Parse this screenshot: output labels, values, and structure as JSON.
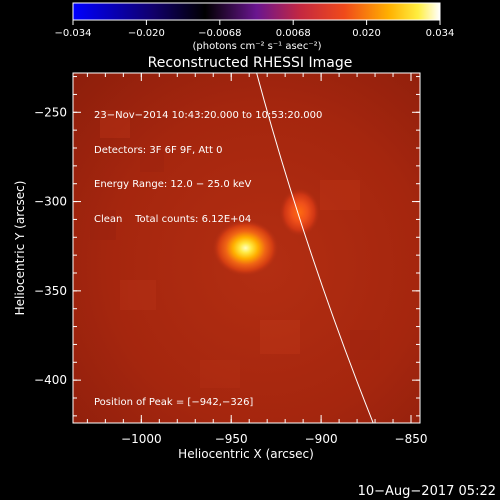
{
  "colorbar": {
    "ticks": [
      "−0.034",
      "−0.020",
      "−0.0068",
      "0.0068",
      "0.020",
      "0.034"
    ],
    "units": "(photons cm⁻² s⁻¹ asec⁻²)",
    "colors": [
      "#0000ff",
      "#000000",
      "#7a1a9c",
      "#d4243a",
      "#ff7a00",
      "#ffd400",
      "#ffffff"
    ]
  },
  "plot": {
    "title": "Reconstructed RHESSI Image",
    "xlabel": "Heliocentric X (arcsec)",
    "ylabel": "Heliocentric Y (arcsec)",
    "xticks": [
      "−1000",
      "−950",
      "−900",
      "−850"
    ],
    "yticks": [
      "−250",
      "−300",
      "−350",
      "−400"
    ],
    "xlim": [
      -1038,
      -845
    ],
    "ylim": [
      -424,
      -228
    ]
  },
  "info": {
    "line1": "23−Nov−2014 10:43:20.000 to 10:53:20.000",
    "line2": "Detectors: 3F 6F 9F, Att 0",
    "line3": "Energy Range: 12.0 − 25.0 keV",
    "line4": "Clean    Total counts: 6.12E+04"
  },
  "peak": {
    "label": "Position of Peak = [−942,−326]",
    "x": -942,
    "y": -326
  },
  "source2": {
    "x": -912,
    "y": -306
  },
  "footer": {
    "date": "10−Aug−2017 05:22"
  },
  "limb_color": "#ffffff",
  "background_color": "#a8270f"
}
